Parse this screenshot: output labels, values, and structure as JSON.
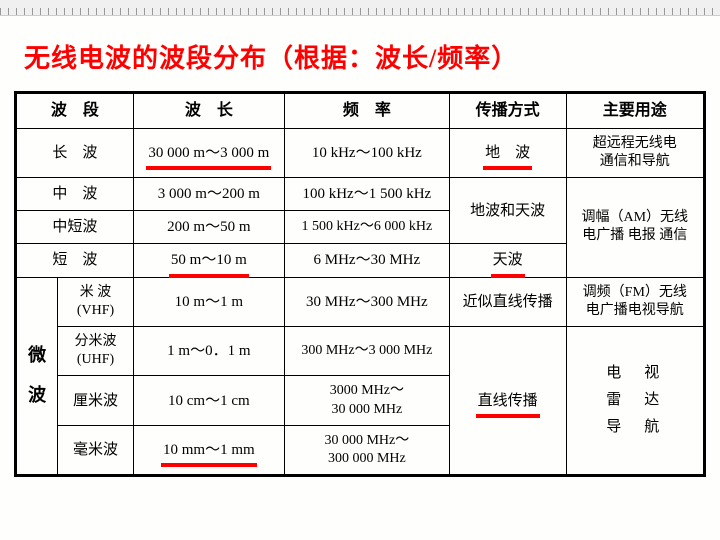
{
  "title": "无线电波的波段分布（根据：波长/频率）",
  "headers": {
    "band": "波　段",
    "wavelength": "波　长",
    "frequency": "频　率",
    "propagation": "传播方式",
    "usage": "主要用途"
  },
  "rows": {
    "longwave": {
      "band": "长　波",
      "wavelength": "30 000 m～3 000 m",
      "frequency": "10 kHz～100 kHz",
      "propagation": "地　波",
      "usage": "超远程无线电\n通信和导航"
    },
    "medium": {
      "band": "中　波",
      "wavelength": "3 000 m～200 m",
      "frequency": "100 kHz～1 500 kHz"
    },
    "medshort": {
      "band": "中短波",
      "wavelength": "200 m～50 m",
      "frequency": "1 500 kHz～6 000 kHz"
    },
    "medium_prop": "地波和天波",
    "medium_usage": "调幅（AM）无线\n电广播 电报 通信",
    "short": {
      "band": "短　波",
      "wavelength": "50 m～10 m",
      "frequency": "6 MHz～30 MHz",
      "propagation": "天波"
    },
    "micro_label": "微\n波",
    "vhf": {
      "band1": "米 波",
      "band2": "(VHF)",
      "wavelength": "10 m～1 m",
      "frequency": "30 MHz～300 MHz",
      "propagation": "近似直线传播",
      "usage": "调频（FM）无线\n电广播电视导航"
    },
    "uhf": {
      "band1": "分米波",
      "band2": "(UHF)",
      "wavelength": "1 m～0．1 m",
      "frequency": "300 MHz～3 000 MHz"
    },
    "shf": {
      "band": "厘米波",
      "wavelength": "10 cm～1 cm",
      "frequency": "3000 MHz～\n30 000 MHz"
    },
    "ehf": {
      "band": "毫米波",
      "wavelength": "10 mm～1 mm",
      "frequency": "30 000 MHz～\n300 000 MHz"
    },
    "micro_prop": "直线传播",
    "micro_usage": "电　视\n雷　达\n导　航"
  },
  "colors": {
    "title": "#ff0000",
    "underline": "#ff0000",
    "border": "#000000",
    "background": "#fefefc"
  },
  "column_widths_pct": [
    6,
    11,
    22,
    24,
    17,
    20
  ],
  "underlined": [
    "longwave.wavelength",
    "longwave.propagation",
    "short.wavelength",
    "short.propagation",
    "ehf.wavelength",
    "micro_prop"
  ]
}
